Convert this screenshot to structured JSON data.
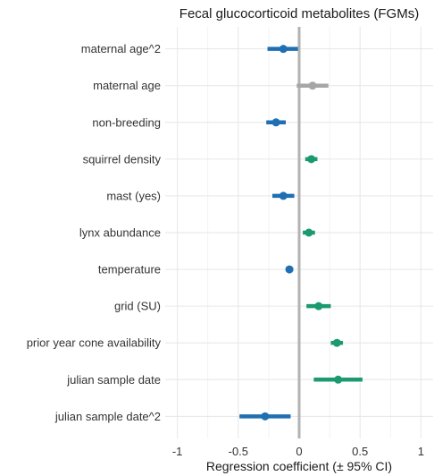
{
  "chart_data": {
    "type": "forest",
    "title": "Fecal glucocorticoid metabolites (FGMs)",
    "xlabel": "Regression coefficient (± 95% CI)",
    "ylabel": "",
    "xlim": [
      -1.1,
      1.1
    ],
    "xticks": [
      -1,
      -0.5,
      0,
      0.5,
      1
    ],
    "xtick_labels": [
      "-1",
      "-0.5",
      "0",
      "0.5",
      "1"
    ],
    "reference_line": 0,
    "grid": true,
    "colors": {
      "negative": "#1f6fb2",
      "positive": "#1a9a6e",
      "nonsignificant": "#a6a6a6",
      "reference": "#b3b3b3"
    },
    "terms": [
      {
        "label": "maternal age^2",
        "estimate": -0.13,
        "lower": -0.26,
        "upper": -0.01,
        "group": "negative"
      },
      {
        "label": "maternal age",
        "estimate": 0.11,
        "lower": -0.02,
        "upper": 0.24,
        "group": "nonsignificant"
      },
      {
        "label": "non-breeding",
        "estimate": -0.19,
        "lower": -0.27,
        "upper": -0.11,
        "group": "negative"
      },
      {
        "label": "squirrel density",
        "estimate": 0.1,
        "lower": 0.05,
        "upper": 0.15,
        "group": "positive"
      },
      {
        "label": "mast (yes)",
        "estimate": -0.13,
        "lower": -0.22,
        "upper": -0.04,
        "group": "negative"
      },
      {
        "label": "lynx abundance",
        "estimate": 0.08,
        "lower": 0.03,
        "upper": 0.13,
        "group": "positive"
      },
      {
        "label": "temperature",
        "estimate": -0.08,
        "lower": -0.11,
        "upper": -0.05,
        "group": "negative"
      },
      {
        "label": "grid (SU)",
        "estimate": 0.16,
        "lower": 0.06,
        "upper": 0.26,
        "group": "positive"
      },
      {
        "label": "prior year cone availability",
        "estimate": 0.31,
        "lower": 0.26,
        "upper": 0.36,
        "group": "positive"
      },
      {
        "label": "julian sample date",
        "estimate": 0.32,
        "lower": 0.12,
        "upper": 0.52,
        "group": "positive"
      },
      {
        "label": "julian sample date^2",
        "estimate": -0.28,
        "lower": -0.49,
        "upper": -0.07,
        "group": "negative"
      }
    ]
  }
}
